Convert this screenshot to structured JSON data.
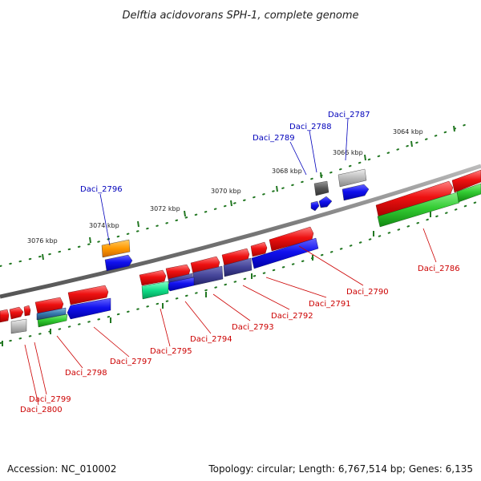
{
  "title": "Delftia acidovorans SPH-1, complete genome",
  "footer": {
    "accession": "Accession: NC_010002",
    "summary": "Topology: circular; Length: 6,767,514 bp; Genes: 6,135"
  },
  "scale_labels": [
    "3076 kbp",
    "3074 kbp",
    "3072 kbp",
    "3070 kbp",
    "3068 kbp",
    "3066 kbp",
    "3064 kbp"
  ],
  "gene_labels_blue": [
    "Daci_2796",
    "Daci_2789",
    "Daci_2788",
    "Daci_2787"
  ],
  "gene_labels_red": [
    "Daci_2786",
    "Daci_2790",
    "Daci_2791",
    "Daci_2792",
    "Daci_2793",
    "Daci_2794",
    "Daci_2795",
    "Daci_2797",
    "Daci_2798",
    "Daci_2799",
    "Daci_2800"
  ],
  "colors": {
    "red": "#ee1111",
    "blue": "#1111ee",
    "green": "#33cc33",
    "orange": "#ff9900",
    "gray": "#aaaaaa",
    "darkgray": "#555555",
    "navy": "#333388",
    "teal": "#11dd88",
    "steelblue": "#3377aa",
    "backbone": "#777777",
    "scale_tick": "#227722",
    "label_red": "#cc0000",
    "label_blue": "#0000bb"
  }
}
